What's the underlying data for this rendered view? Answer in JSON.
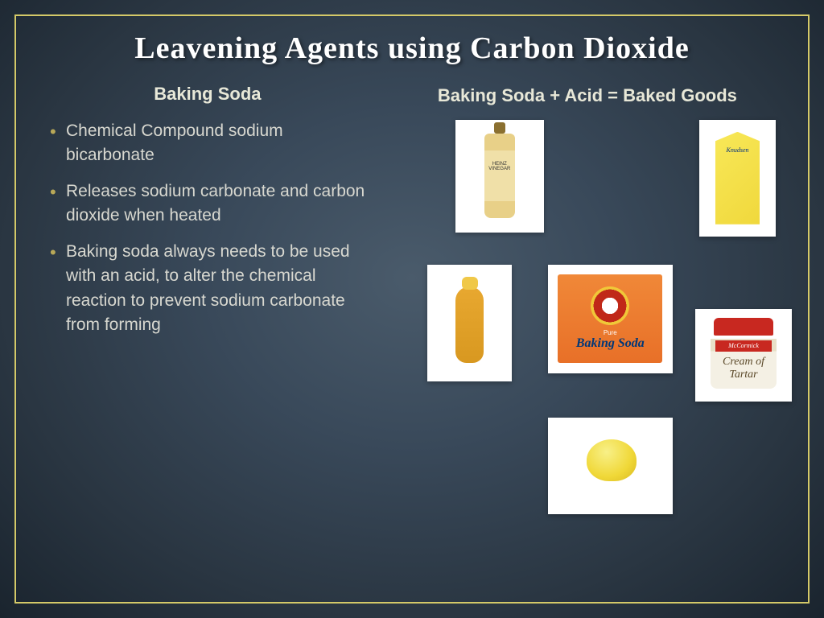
{
  "title": "Leavening Agents using Carbon Dioxide",
  "left": {
    "heading": "Baking Soda",
    "bullets": [
      "Chemical Compound sodium bicarbonate",
      "Releases sodium carbonate and carbon dioxide when heated",
      "Baking soda always needs to be used with an acid, to alter the chemical reaction to prevent sodium carbonate from forming"
    ]
  },
  "right": {
    "heading": "Baking Soda +  Acid = Baked Goods"
  },
  "products": {
    "baking_soda_pure": "Pure",
    "baking_soda_brand": "Baking Soda",
    "tartar_brand": "McCormick"
  },
  "colors": {
    "border": "#d4c968",
    "bullet": "#b8a858",
    "text": "#d8d8d0",
    "heading": "#e8e8d8"
  }
}
